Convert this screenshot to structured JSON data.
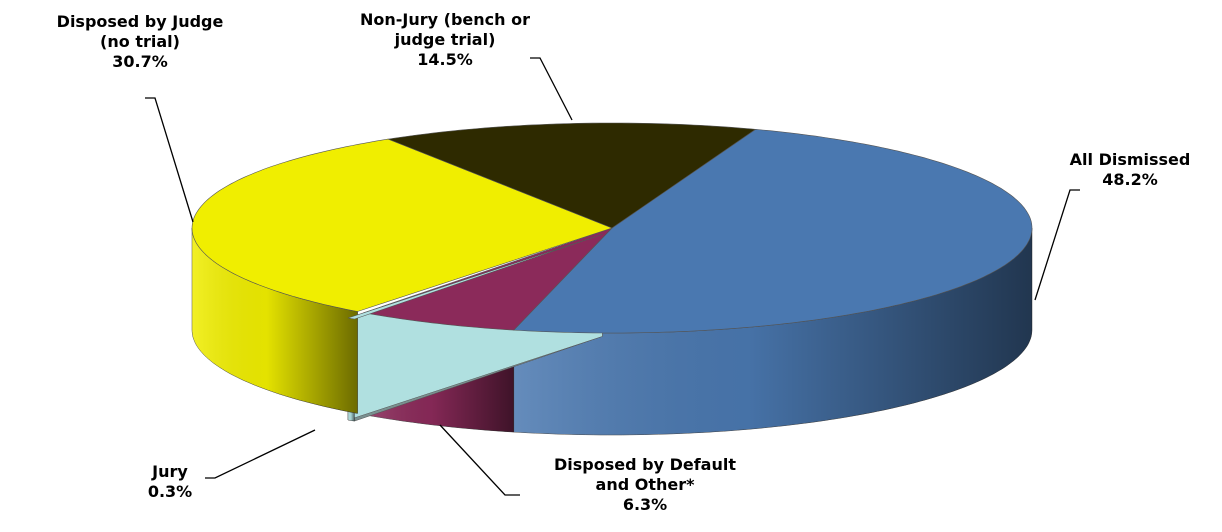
{
  "chart_data": {
    "type": "pie3d",
    "categories": [
      "All Dismissed",
      "Disposed by Default and Other*",
      "Jury",
      "Disposed by Judge (no trial)",
      "Non-Jury (bench or judge trial)"
    ],
    "values": [
      48.2,
      6.3,
      0.3,
      30.7,
      14.5
    ],
    "value_labels": [
      "48.2%",
      "6.3%",
      "0.3%",
      "30.7%",
      "14.5%"
    ],
    "colors": [
      "#4a78b0",
      "#8b2a5a",
      "#b0e0e0",
      "#f0ee00",
      "#2e2a00"
    ]
  }
}
